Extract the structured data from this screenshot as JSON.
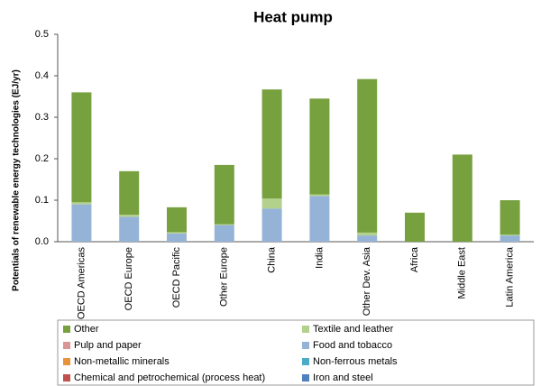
{
  "chart_data": {
    "type": "stacked-bar",
    "title": "Heat pump",
    "y_label": "Potentials of renewable energy technologies (EJ/yr)",
    "categories": [
      "OECD Americas",
      "OECD Europe",
      "OECD Pacific",
      "Other Europe",
      "China",
      "India",
      "Other Dev. Asia",
      "Africa",
      "Middle East",
      "Latin America"
    ],
    "ylim": [
      0,
      0.5
    ],
    "yticks": [
      {
        "value": 0,
        "label": "0.0"
      },
      0.1,
      0.2,
      0.3,
      0.4,
      0.5
    ],
    "grid": false,
    "legend": "bottom",
    "series": [
      {
        "name": "Other",
        "color": "#77a03e",
        "values": [
          0.265,
          0.105,
          0.06,
          0.143,
          0.263,
          0.231,
          0.37,
          0.07,
          0.21,
          0.083
        ]
      },
      {
        "name": "Textile and leather",
        "color": "#b3d18c",
        "values": [
          0.005,
          0.005,
          0.003,
          0.002,
          0.024,
          0.004,
          0.007,
          0,
          0,
          0.002
        ]
      },
      {
        "name": "Pulp and paper",
        "color": "#d99694",
        "values": [
          0,
          0,
          0,
          0,
          0,
          0,
          0,
          0,
          0,
          0
        ]
      },
      {
        "name": "Food and tobacco",
        "color": "#95b3d7",
        "values": [
          0.09,
          0.06,
          0.02,
          0.04,
          0.08,
          0.11,
          0.015,
          0,
          0,
          0.015
        ]
      },
      {
        "name": "Non-metallic minerals",
        "color": "#e8923b",
        "values": [
          0,
          0,
          0,
          0,
          0,
          0,
          0,
          0,
          0,
          0
        ]
      },
      {
        "name": "Non-ferrous metals",
        "color": "#4bacc6",
        "values": [
          0,
          0,
          0,
          0,
          0,
          0,
          0,
          0,
          0,
          0
        ]
      },
      {
        "name": "Chemical and petrochemical (process heat)",
        "color": "#c0504d",
        "values": [
          0,
          0,
          0,
          0,
          0,
          0,
          0,
          0,
          0,
          0
        ]
      },
      {
        "name": "Iron and steel",
        "color": "#4f81bd",
        "values": [
          0,
          0,
          0,
          0,
          0,
          0,
          0,
          0,
          0,
          0
        ]
      }
    ]
  }
}
